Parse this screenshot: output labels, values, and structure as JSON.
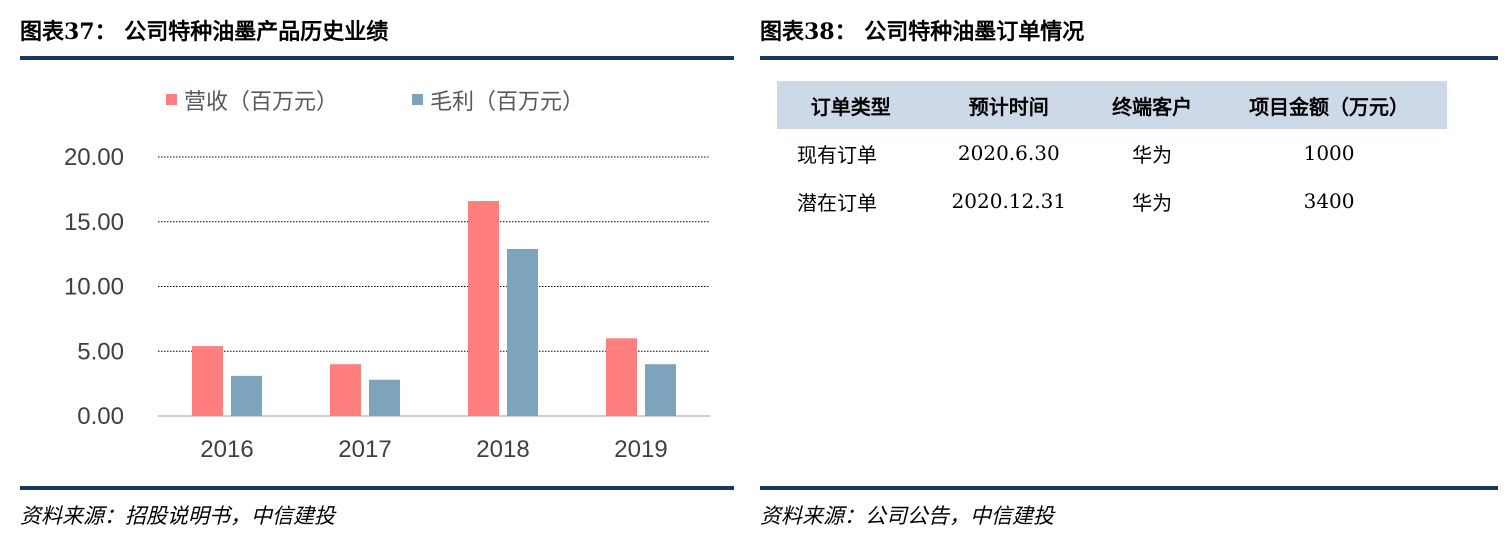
{
  "left_panel": {
    "title": "图表37：  公司特种油墨产品历史业绩",
    "source": "资料来源：招股说明书，中信建投"
  },
  "right_panel": {
    "title": "图表38：  公司特种油墨订单情况",
    "source": "资料来源：公司公告，中信建投",
    "table": {
      "headers": [
        "订单类型",
        "预计时间",
        "终端客户",
        "项目金额（万元）"
      ],
      "rows": [
        [
          "现有订单",
          "2020.6.30",
          "华为",
          "1000"
        ],
        [
          "潜在订单",
          "2020.12.31",
          "华为",
          "3400"
        ]
      ]
    }
  },
  "chart_data": {
    "type": "bar",
    "title": "公司特种油墨产品历史业绩",
    "categories": [
      "2016",
      "2017",
      "2018",
      "2019"
    ],
    "series": [
      {
        "name": "营收（百万元）",
        "values": [
          5.4,
          4.0,
          16.6,
          6.0
        ],
        "color": "#ff7f7f"
      },
      {
        "name": "毛利（百万元）",
        "values": [
          3.1,
          2.8,
          12.9,
          4.0
        ],
        "color": "#7ea3bd"
      }
    ],
    "yticks": [
      "20.00",
      "15.00",
      "10.00",
      "5.00",
      "0.00"
    ],
    "ylim": [
      0,
      20
    ],
    "grid": true,
    "legend": "top"
  }
}
